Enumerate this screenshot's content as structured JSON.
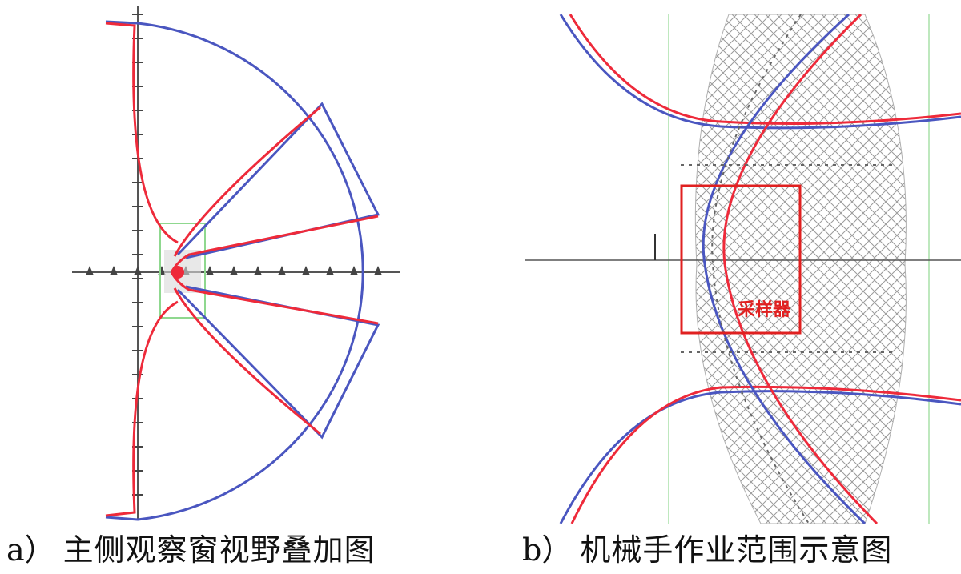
{
  "figures": [
    {
      "id": "a",
      "letter": "a）",
      "caption": "主侧观察窗视野叠加图"
    },
    {
      "id": "b",
      "letter": "b）",
      "caption": "机械手作业范围示意图",
      "box_label": "采样器"
    }
  ],
  "colors": {
    "blue": "#4a56c0",
    "red": "#ee2a3a",
    "axis": "#555555",
    "green": "#8fd88f",
    "hatch": "#9a9a9a"
  }
}
